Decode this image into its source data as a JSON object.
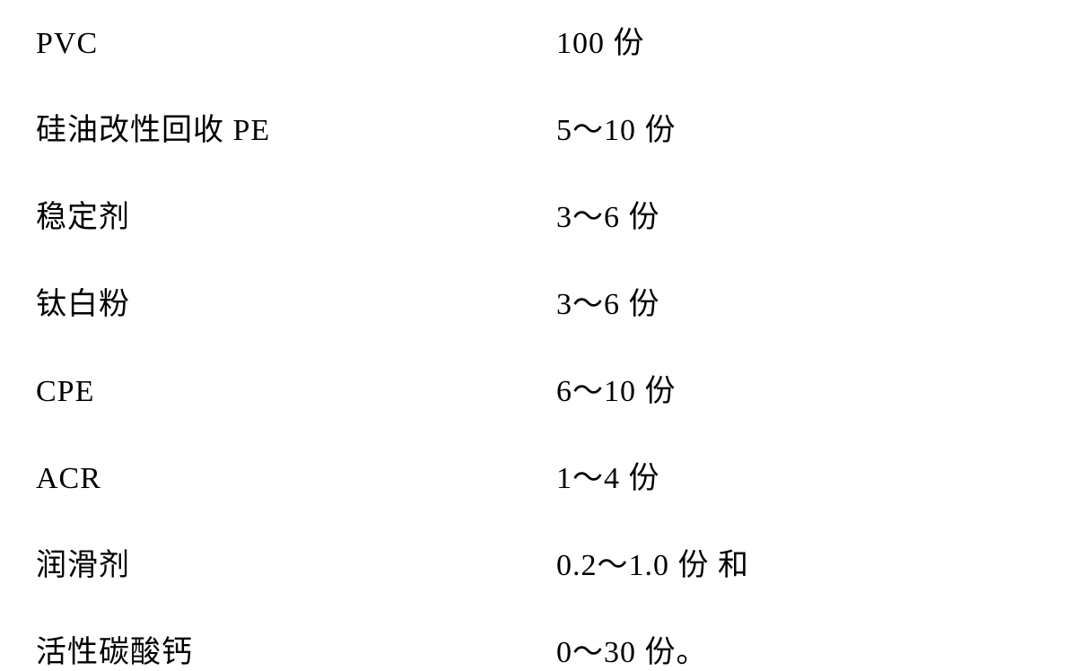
{
  "text_color": "#000000",
  "background_color": "#ffffff",
  "font_size": 34,
  "font_family": "SimSun",
  "rows": [
    {
      "label": "PVC",
      "value": "100 份"
    },
    {
      "label": "硅油改性回收 PE",
      "value": "5～10 份"
    },
    {
      "label": "稳定剂",
      "value": "3～6 份"
    },
    {
      "label": "钛白粉",
      "value": "3～6 份"
    },
    {
      "label": "CPE",
      "value": "6～10 份"
    },
    {
      "label": "ACR",
      "value": "1～4 份"
    },
    {
      "label": "润滑剂",
      "value": "0.2～1.0 份  和"
    },
    {
      "label": "活性碳酸钙",
      "value": "0～30 份。"
    }
  ]
}
